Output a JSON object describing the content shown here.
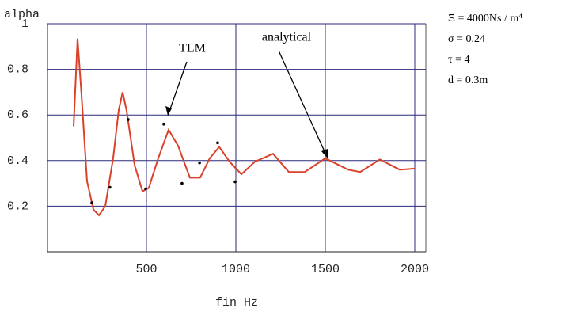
{
  "chart_data": {
    "type": "line",
    "x_label": "fin Hz",
    "y_label": "alpha",
    "parameters": [
      "Ξ = 4000Ns / m⁴",
      "σ = 0.24",
      "τ = 4",
      "d = 0.3m"
    ],
    "series": [
      {
        "name": "analytical",
        "color": "#d9412b",
        "x": [
          93,
          115,
          137,
          168,
          204,
          235,
          270,
          314,
          345,
          367,
          389,
          434,
          478,
          513,
          566,
          624,
          677,
          743,
          800,
          854,
          907,
          965,
          1031,
          1106,
          1208,
          1296,
          1385,
          1500,
          1628,
          1695,
          1805,
          1916,
          2000
        ],
        "values": [
          0.55,
          0.935,
          0.69,
          0.31,
          0.185,
          0.16,
          0.2,
          0.41,
          0.62,
          0.7,
          0.62,
          0.38,
          0.265,
          0.28,
          0.41,
          0.535,
          0.465,
          0.325,
          0.325,
          0.41,
          0.46,
          0.395,
          0.34,
          0.395,
          0.43,
          0.35,
          0.35,
          0.41,
          0.36,
          0.35,
          0.405,
          0.36,
          0.365
        ]
      },
      {
        "name": "TLM",
        "color": "#000000",
        "x": [
          195,
          296,
          398,
          496,
          597,
          699,
          797,
          898,
          996
        ],
        "values": [
          0.215,
          0.283,
          0.58,
          0.276,
          0.56,
          0.3,
          0.39,
          0.478,
          0.307
        ]
      }
    ],
    "xlim": [
      -53,
      2062
    ],
    "xticks": [
      500,
      1000,
      1500,
      2000
    ],
    "ylim": [
      0,
      1
    ],
    "yticks": [
      0.2,
      0.4,
      0.6,
      0.8,
      1
    ],
    "grid": true,
    "grid_color": "#2a2a7a"
  }
}
